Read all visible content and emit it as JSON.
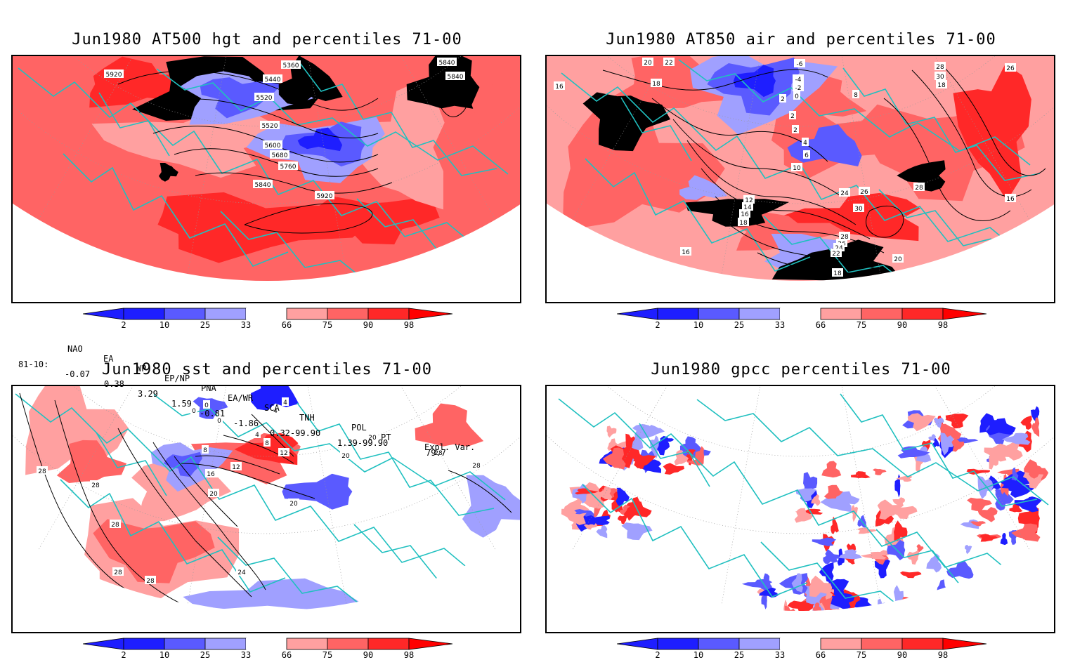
{
  "colors": {
    "blue_dark": "#1e1eff",
    "blue_mid": "#5a5aff",
    "blue_light": "#a0a0ff",
    "red_light": "#ffa0a0",
    "red_mid": "#ff6464",
    "red_dark": "#ff2828",
    "coast": "#20c0c0",
    "contour": "#000000"
  },
  "colorbar": {
    "ticks": [
      "2",
      "10",
      "25",
      "33",
      "66",
      "75",
      "90",
      "98"
    ]
  },
  "panels": [
    {
      "id": "hgt",
      "title": "Jun1980 AT500 hgt and percentiles 71-00",
      "contour_labels": [
        "5920",
        "5360",
        "5840",
        "5440",
        "5840",
        "5520",
        "5520",
        "5600",
        "5680",
        "5760",
        "5840",
        "5920"
      ]
    },
    {
      "id": "air",
      "title": "Jun1980 AT850 air and percentiles 71-00",
      "contour_labels": [
        "20",
        "22",
        "18",
        "16",
        "-6",
        "-4",
        "-2",
        "0",
        "2",
        "8",
        "2",
        "2",
        "4",
        "6",
        "10",
        "12",
        "14",
        "16",
        "18",
        "26",
        "28",
        "30",
        "18",
        "26",
        "24",
        "28",
        "30",
        "16",
        "28",
        "26",
        "24",
        "22",
        "20",
        "18",
        "16"
      ]
    },
    {
      "id": "sst",
      "title": "Jun1980 sst and percentiles 71-00",
      "contour_labels": [
        "28",
        "0",
        "0",
        "0",
        "4",
        "4",
        "8",
        "4",
        "8",
        "12",
        "12",
        "16",
        "20",
        "20",
        "20",
        "20",
        "28",
        "28",
        "28",
        "28",
        "28",
        "24",
        "28"
      ]
    },
    {
      "id": "gpcc",
      "title": "Jun1980 gpcc percentiles 71-00",
      "contour_labels": []
    }
  ],
  "indices": {
    "headers": [
      "NAO",
      "EA",
      "WP",
      "EP/NP",
      "PNA",
      "EA/WR",
      "SCA",
      "TNH",
      "POL",
      "PT",
      "Expl. Var."
    ],
    "row_label": "81-10:",
    "values": [
      "-0.07",
      "0.38",
      "3.29",
      "1.59",
      "-0.81",
      "-1.86",
      "0.32-99.90",
      "1.39-99.90",
      "79.7"
    ]
  }
}
